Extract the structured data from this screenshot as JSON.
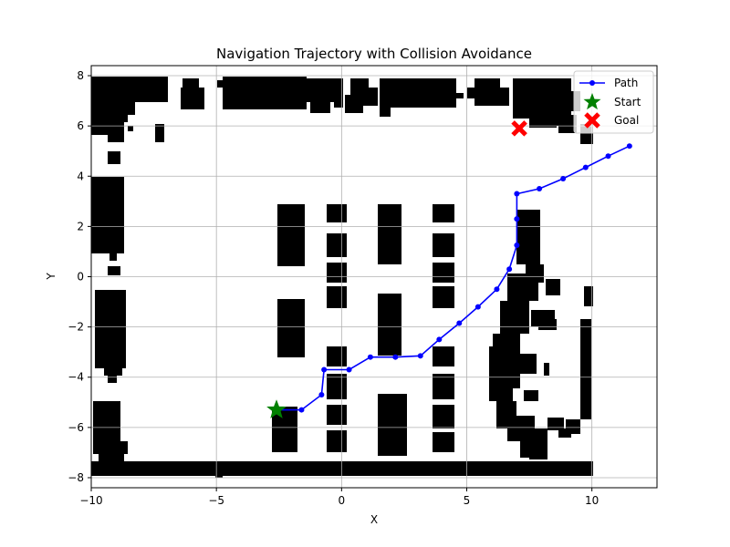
{
  "chart_data": {
    "type": "line",
    "title": "Navigation Trajectory with Collision Avoidance",
    "xlabel": "X",
    "ylabel": "Y",
    "xlim": [
      -10,
      12.6
    ],
    "ylim": [
      -8.4,
      8.4
    ],
    "grid": true,
    "legend_position": "top-right",
    "x_ticks": [
      -10,
      -5,
      0,
      5,
      10
    ],
    "y_ticks": [
      -8,
      -6,
      -4,
      -2,
      0,
      2,
      4,
      6,
      8
    ],
    "x_tick_labels": [
      "−10",
      "−5",
      "0",
      "5",
      "10"
    ],
    "y_tick_labels": [
      "−8",
      "−6",
      "−4",
      "−2",
      "0",
      "2",
      "4",
      "6",
      "8"
    ],
    "colors": {
      "path": "#0000ff",
      "start": "#008000",
      "goal": "#ff0000",
      "obstacle": "#000000",
      "grid": "#b0b0b0"
    },
    "series": [
      {
        "name": "Path",
        "marker": "circle",
        "x": [
          -2.6,
          -1.6,
          -0.8,
          -0.7,
          0.3,
          1.15,
          2.15,
          3.15,
          3.9,
          4.7,
          5.45,
          6.2,
          6.7,
          7.0,
          7.0,
          7.0,
          7.9,
          8.85,
          9.75,
          10.65,
          11.5
        ],
        "y": [
          -5.3,
          -5.3,
          -4.7,
          -3.7,
          -3.7,
          -3.2,
          -3.2,
          -3.15,
          -2.5,
          -1.85,
          -1.2,
          -0.5,
          0.3,
          1.25,
          2.3,
          3.3,
          3.5,
          3.9,
          4.35,
          4.8,
          5.2
        ]
      },
      {
        "name": "Start",
        "marker": "star",
        "x": [
          -2.6
        ],
        "y": [
          -5.3
        ]
      },
      {
        "name": "Goal",
        "marker": "x",
        "x": [
          7.1
        ],
        "y": [
          5.9
        ]
      }
    ]
  }
}
